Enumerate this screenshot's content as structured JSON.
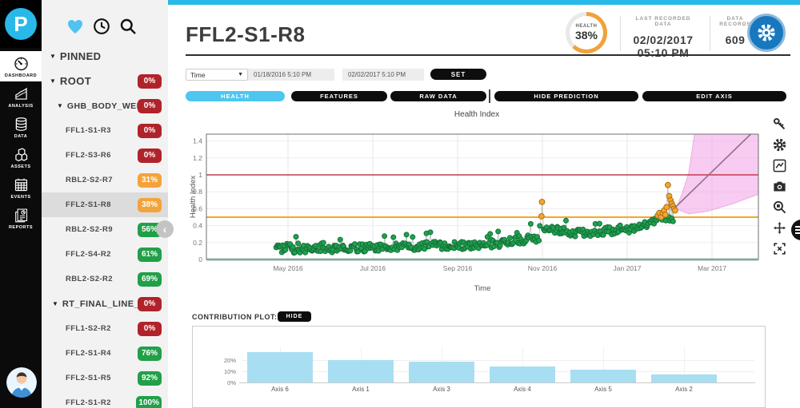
{
  "app": {
    "logo_letter": "P"
  },
  "colors": {
    "accent": "#29b9e8",
    "tab_active": "#4fc6f0",
    "badge_red": "#b0232a",
    "badge_orange": "#f3a33b",
    "badge_green": "#21a049",
    "bar_blue": "#a8def2",
    "settings_blue": "#1878bf",
    "gauge_arc": "#f0a23a",
    "point_green": "#1fa24d",
    "point_green_edge": "#15713a",
    "point_orange": "#f5a62c",
    "point_orange_edge": "#a8701c"
  },
  "nav_rail": {
    "items": [
      {
        "label": "DASHBOARD",
        "icon": "gauge-icon",
        "active": true
      },
      {
        "label": "ANALYSIS",
        "icon": "analysis-icon",
        "active": false
      },
      {
        "label": "DATA",
        "icon": "database-icon",
        "active": false
      },
      {
        "label": "ASSETS",
        "icon": "assets-icon",
        "active": false
      },
      {
        "label": "EVENTS",
        "icon": "calendar-icon",
        "active": false
      },
      {
        "label": "REPORTS",
        "icon": "reports-icon",
        "active": false
      }
    ]
  },
  "sidebar": {
    "header_icons": [
      {
        "name": "heart-icon",
        "color": "#4fc3ef"
      },
      {
        "name": "clock-icon",
        "color": "#111111"
      },
      {
        "name": "search-icon",
        "color": "#111111"
      }
    ],
    "tree": [
      {
        "label": "PINNED",
        "type": "group",
        "caret": true
      },
      {
        "label": "ROOT",
        "type": "group",
        "caret": true,
        "badge": "0%",
        "badge_color": "red"
      },
      {
        "label": "GHB_BODY_WEL...",
        "type": "sub",
        "caret": true,
        "badge": "0%",
        "badge_color": "red"
      },
      {
        "label": "FFL1-S1-R3",
        "type": "leaf",
        "badge": "0%",
        "badge_color": "red"
      },
      {
        "label": "FFL2-S3-R6",
        "type": "leaf",
        "badge": "0%",
        "badge_color": "red"
      },
      {
        "label": "RBL2-S2-R7",
        "type": "leaf",
        "badge": "31%",
        "badge_color": "orange"
      },
      {
        "label": "FFL2-S1-R8",
        "type": "leaf",
        "badge": "38%",
        "badge_color": "orange",
        "selected": true
      },
      {
        "label": "RBL2-S2-R9",
        "type": "leaf",
        "badge": "56%",
        "badge_color": "green"
      },
      {
        "label": "FFL2-S4-R2",
        "type": "leaf",
        "badge": "61%",
        "badge_color": "green"
      },
      {
        "label": "RBL2-S2-R2",
        "type": "leaf",
        "badge": "69%",
        "badge_color": "green"
      },
      {
        "label": "RT_FINAL_LINE_1",
        "type": "sub2",
        "caret": true,
        "badge": "0%",
        "badge_color": "red"
      },
      {
        "label": "FFL1-S2-R2",
        "type": "leaf",
        "badge": "0%",
        "badge_color": "red"
      },
      {
        "label": "FFL2-S1-R4",
        "type": "leaf",
        "badge": "76%",
        "badge_color": "green"
      },
      {
        "label": "FFL2-S1-R5",
        "type": "leaf",
        "badge": "92%",
        "badge_color": "green"
      },
      {
        "label": "FFL2-S1-R2",
        "type": "leaf",
        "badge": "100%",
        "badge_color": "green"
      }
    ]
  },
  "header": {
    "title": "FFL2-S1-R8",
    "health": {
      "label": "HEALTH",
      "value": "38%",
      "arc_pct": 62
    },
    "last_recorded": {
      "label": "LAST RECORDED DATA",
      "value": "02/02/2017 05:10 PM"
    },
    "data_records": {
      "label": "DATA RECORDS",
      "value": "609"
    }
  },
  "controls": {
    "dimension": "Time",
    "start": "01/18/2016 5:10 PM",
    "end": "02/02/2017 5:10 PM",
    "set_label": "SET"
  },
  "tabs": [
    {
      "label": "HEALTH",
      "active": true
    },
    {
      "label": "FEATURES",
      "active": false
    },
    {
      "label": "RAW DATA",
      "active": false
    },
    {
      "label": "HIDE PREDICTION",
      "active": false
    },
    {
      "label": "EDIT AXIS",
      "active": false
    }
  ],
  "modebar_icons": [
    "key-icon",
    "gear-icon",
    "edit-chart-icon",
    "camera-icon",
    "zoom-icon",
    "pan-icon",
    "autoscale-icon"
  ],
  "contribution": {
    "label": "CONTRIBUTION PLOT:",
    "hide_label": "HIDE"
  },
  "chart_data": [
    {
      "type": "scatter",
      "title": "Health Index",
      "xlabel": "Time",
      "ylabel": "Health Index",
      "ylim": [
        -0.12,
        1.48
      ],
      "x_ticks": [
        "May 2016",
        "Jul 2016",
        "Sep 2016",
        "Nov 2016",
        "Jan 2017",
        "Mar 2017"
      ],
      "x_tick_t": [
        1,
        3,
        5,
        7,
        9,
        11
      ],
      "y_ticks": [
        "0",
        "0.2",
        "0.4",
        "0.6",
        "0.8",
        "1",
        "1.2",
        "1.4"
      ],
      "thresholds": [
        {
          "value": 1,
          "color": "#c23b4f",
          "width": 1.6
        },
        {
          "value": 0.5,
          "color": "#f5a623",
          "width": 2
        },
        {
          "value": 0,
          "color": "#2f9960",
          "width": 2.4
        }
      ],
      "seed": 7,
      "green_segments": [
        [
          0.72,
          1.35,
          0.13,
          0.14,
          0.065,
          26
        ],
        [
          1.35,
          2.2,
          0.12,
          0.13,
          0.05,
          34
        ],
        [
          2.2,
          3.2,
          0.13,
          0.14,
          0.05,
          40
        ],
        [
          3.2,
          4.2,
          0.14,
          0.16,
          0.05,
          40
        ],
        [
          4.2,
          5.2,
          0.16,
          0.17,
          0.05,
          40
        ],
        [
          5.2,
          6.2,
          0.17,
          0.2,
          0.05,
          40
        ],
        [
          6.2,
          6.95,
          0.21,
          0.25,
          0.045,
          28
        ],
        [
          7.02,
          7.6,
          0.37,
          0.33,
          0.04,
          22
        ],
        [
          7.6,
          8.4,
          0.3,
          0.33,
          0.045,
          30
        ],
        [
          8.4,
          9.3,
          0.33,
          0.38,
          0.05,
          34
        ],
        [
          9.3,
          9.75,
          0.4,
          0.47,
          0.045,
          16
        ],
        [
          9.78,
          10.12,
          0.46,
          0.48,
          0.03,
          8
        ]
      ],
      "orange_points": [
        [
          6.98,
          0.51
        ],
        [
          6.99,
          0.68
        ],
        [
          9.72,
          0.52
        ],
        [
          9.76,
          0.55
        ],
        [
          9.8,
          0.5
        ],
        [
          9.84,
          0.55
        ],
        [
          9.87,
          0.58
        ],
        [
          9.9,
          0.53
        ],
        [
          9.93,
          0.62
        ],
        [
          9.96,
          0.88
        ],
        [
          9.99,
          0.75
        ],
        [
          10.02,
          0.7
        ],
        [
          10.05,
          0.66
        ],
        [
          10.08,
          0.63
        ],
        [
          10.1,
          0.6
        ],
        [
          10.13,
          0.58
        ]
      ],
      "prediction": {
        "fill": "#f2a0e8",
        "cone": [
          [
            10.15,
            0.6
          ],
          [
            10.45,
            0.54
          ],
          [
            10.9,
            0.57
          ],
          [
            11.5,
            0.66
          ],
          [
            12.09,
            0.77
          ],
          [
            12.09,
            1.6
          ],
          [
            10.62,
            1.6
          ],
          [
            10.45,
            1.02
          ],
          [
            10.28,
            0.76
          ]
        ],
        "line": [
          [
            10.1,
            0.6
          ],
          [
            12.2,
            1.62
          ]
        ]
      }
    },
    {
      "type": "bar",
      "categories": [
        "Axis 6",
        "Axis 1",
        "Axis 3",
        "Axis 4",
        "Axis 5",
        "Axis 2"
      ],
      "values": [
        27,
        20,
        18.5,
        14.5,
        11.5,
        7.5
      ],
      "ylabel": "",
      "xlabel": "",
      "y_ticks": [
        0,
        10,
        20
      ],
      "ylim": [
        0,
        30
      ],
      "bar_color": "#a8def2"
    }
  ]
}
